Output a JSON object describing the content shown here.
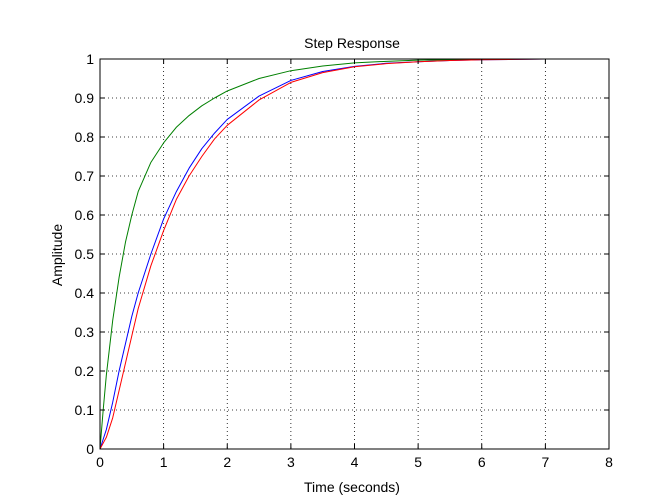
{
  "chart_data": {
    "type": "line",
    "title": "Step Response",
    "xlabel": "Time (seconds)",
    "ylabel": "Amplitude",
    "xlim": [
      0,
      8
    ],
    "ylim": [
      0,
      1
    ],
    "xticks": [
      0,
      1,
      2,
      3,
      4,
      5,
      6,
      7,
      8
    ],
    "yticks": [
      0,
      0.1,
      0.2,
      0.3,
      0.4,
      0.5,
      0.6,
      0.7,
      0.8,
      0.9,
      1
    ],
    "grid": true,
    "series": [
      {
        "color": "#0000ff",
        "x": [
          0,
          0.1,
          0.2,
          0.3,
          0.4,
          0.5,
          0.6,
          0.8,
          1.0,
          1.2,
          1.4,
          1.6,
          1.8,
          2.0,
          2.5,
          3.0,
          3.5,
          4.0,
          4.5,
          5.0,
          5.5,
          6.0,
          6.5,
          7.0
        ],
        "y": [
          0,
          0.05,
          0.12,
          0.2,
          0.27,
          0.34,
          0.4,
          0.5,
          0.59,
          0.66,
          0.72,
          0.77,
          0.81,
          0.845,
          0.905,
          0.945,
          0.968,
          0.981,
          0.989,
          0.993,
          0.996,
          0.998,
          0.999,
          1.0
        ]
      },
      {
        "color": "#008000",
        "x": [
          0,
          0.05,
          0.1,
          0.2,
          0.3,
          0.4,
          0.5,
          0.6,
          0.8,
          1.0,
          1.2,
          1.4,
          1.6,
          1.8,
          2.0,
          2.5,
          3.0,
          3.5,
          4.0,
          4.5,
          5.0,
          5.5,
          6.0,
          6.5,
          7.0
        ],
        "y": [
          0,
          0.1,
          0.19,
          0.33,
          0.44,
          0.53,
          0.6,
          0.66,
          0.735,
          0.785,
          0.825,
          0.855,
          0.88,
          0.9,
          0.918,
          0.95,
          0.97,
          0.982,
          0.99,
          0.994,
          0.997,
          0.998,
          0.999,
          1.0,
          1.0
        ]
      },
      {
        "color": "#ff0000",
        "x": [
          0,
          0.1,
          0.2,
          0.3,
          0.4,
          0.5,
          0.6,
          0.8,
          1.0,
          1.2,
          1.4,
          1.6,
          1.8,
          2.0,
          2.5,
          3.0,
          3.5,
          4.0,
          4.5,
          5.0,
          5.5,
          6.0,
          6.5,
          7.0
        ],
        "y": [
          0,
          0.03,
          0.08,
          0.15,
          0.22,
          0.29,
          0.36,
          0.47,
          0.56,
          0.64,
          0.7,
          0.75,
          0.795,
          0.83,
          0.895,
          0.94,
          0.965,
          0.98,
          0.988,
          0.993,
          0.996,
          0.998,
          0.999,
          1.0
        ]
      }
    ]
  }
}
